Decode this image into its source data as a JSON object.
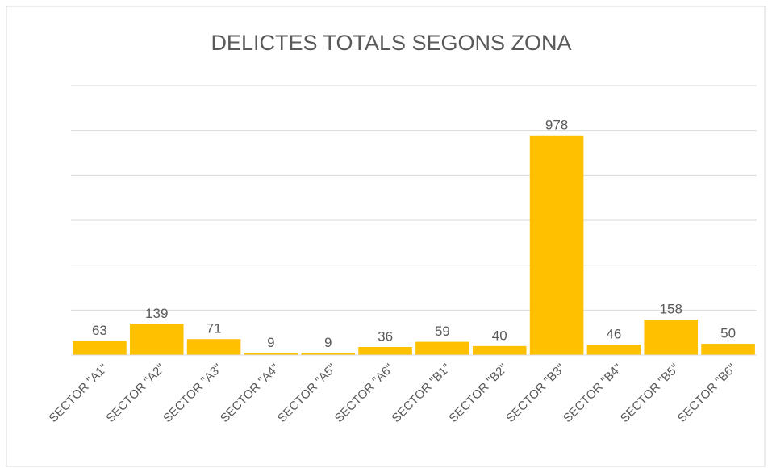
{
  "chart_data": {
    "type": "bar",
    "title": "DELICTES TOTALS SEGONS ZONA",
    "categories": [
      "SECTOR \"A1\"",
      "SECTOR \"A2\"",
      "SECTOR \"A3\"",
      "SECTOR \"A4\"",
      "SECTOR \"A5\"",
      "SECTOR \"A6\"",
      "SECTOR \"B1\"",
      "SECTOR \"B2\"",
      "SECTOR \"B3\"",
      "SECTOR \"B4\"",
      "SECTOR \"B5\"",
      "SECTOR \"B6\""
    ],
    "values": [
      63,
      139,
      71,
      9,
      9,
      36,
      59,
      40,
      978,
      46,
      158,
      50
    ],
    "color": "#ffc000",
    "ylim": [
      0,
      1200
    ],
    "yticks": [
      0,
      200,
      400,
      600,
      800,
      1000,
      1200
    ],
    "grid": true
  }
}
